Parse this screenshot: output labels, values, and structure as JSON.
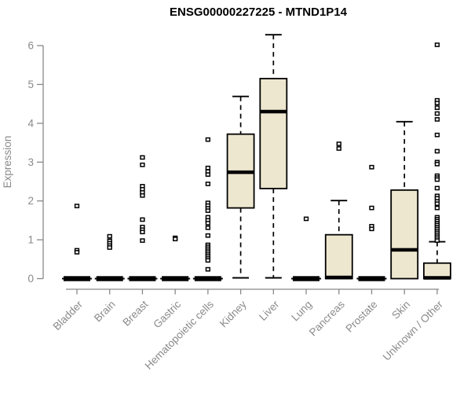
{
  "chart_data": {
    "type": "boxplot",
    "title": "ENSG00000227225 - MTND1P14",
    "ylabel": "Expression",
    "ylim": [
      0,
      6
    ],
    "yticks": [
      0,
      1,
      2,
      3,
      4,
      5,
      6
    ],
    "grid": false,
    "legend": false,
    "categories": [
      "Bladder",
      "Brain",
      "Breast",
      "Gastric",
      "Hematopoietic cells",
      "Kidney",
      "Liver",
      "Lung",
      "Pancreas",
      "Prostate",
      "Skin",
      "Unknown / Other"
    ],
    "boxes": [
      {
        "category": "Bladder",
        "q1": 0,
        "median": 0,
        "q3": 0,
        "whisker_low": 0,
        "whisker_high": 0,
        "outliers": [
          1.87,
          0.73,
          0.68
        ]
      },
      {
        "category": "Brain",
        "q1": 0,
        "median": 0,
        "q3": 0,
        "whisker_low": 0,
        "whisker_high": 0,
        "outliers": [
          1.09,
          0.97,
          0.91,
          0.85,
          0.8
        ]
      },
      {
        "category": "Breast",
        "q1": 0,
        "median": 0,
        "q3": 0,
        "whisker_low": 0,
        "whisker_high": 0,
        "outliers": [
          3.12,
          2.93,
          2.38,
          2.3,
          2.22,
          2.14,
          1.52,
          1.33,
          1.26,
          1.2,
          0.98
        ]
      },
      {
        "category": "Gastric",
        "q1": 0,
        "median": 0,
        "q3": 0,
        "whisker_low": 0,
        "whisker_high": 0,
        "outliers": [
          1.05,
          1.02
        ]
      },
      {
        "category": "Hematopoietic cells",
        "q1": 0,
        "median": 0,
        "q3": 0,
        "whisker_low": 0,
        "whisker_high": 0,
        "outliers": [
          3.58,
          2.85,
          2.76,
          2.68,
          2.44,
          1.95,
          1.88,
          1.81,
          1.75,
          1.58,
          1.5,
          1.43,
          1.31,
          1.11,
          0.87,
          0.82,
          0.77,
          0.72,
          0.67,
          0.62,
          0.57,
          0.52,
          0.47,
          0.24
        ]
      },
      {
        "category": "Kidney",
        "q1": 1.82,
        "median": 2.74,
        "q3": 3.72,
        "whisker_low": 0.02,
        "whisker_high": 4.69,
        "outliers": []
      },
      {
        "category": "Liver",
        "q1": 2.32,
        "median": 4.3,
        "q3": 5.15,
        "whisker_low": 0.02,
        "whisker_high": 6.28,
        "outliers": []
      },
      {
        "category": "Lung",
        "q1": 0,
        "median": 0,
        "q3": 0,
        "whisker_low": 0,
        "whisker_high": 0,
        "outliers": [
          1.54
        ]
      },
      {
        "category": "Pancreas",
        "q1": 0,
        "median": 0.03,
        "q3": 1.13,
        "whisker_low": 0,
        "whisker_high": 2.01,
        "outliers": [
          3.47,
          3.35
        ]
      },
      {
        "category": "Prostate",
        "q1": 0,
        "median": 0,
        "q3": 0,
        "whisker_low": 0,
        "whisker_high": 0,
        "outliers": [
          2.87,
          1.82,
          1.35,
          1.28
        ]
      },
      {
        "category": "Skin",
        "q1": 0,
        "median": 0.74,
        "q3": 2.28,
        "whisker_low": 0,
        "whisker_high": 4.04,
        "outliers": []
      },
      {
        "category": "Unknown / Other",
        "q1": 0,
        "median": 0.02,
        "q3": 0.4,
        "whisker_low": 0,
        "whisker_high": 0.95,
        "outliers": [
          6.02,
          4.59,
          4.52,
          4.4,
          4.25,
          4.1,
          3.7,
          3.28,
          3.0,
          2.95,
          2.65,
          2.6,
          2.55,
          2.33,
          2.13,
          2.07,
          1.99,
          1.93,
          1.82,
          1.58,
          1.53,
          1.48,
          1.43,
          1.38,
          1.33,
          1.28,
          1.23,
          1.18,
          1.13,
          1.08,
          1.03,
          0.98
        ]
      }
    ],
    "colors": {
      "box_fill": "#EEE7CF",
      "box_stroke": "#000000",
      "median": "#000000",
      "whisker": "#000000",
      "outlier_fill": "#ffffff",
      "axis": "#888888",
      "label": "#8a8a8a",
      "title": "#000000",
      "background": "#ffffff"
    }
  }
}
